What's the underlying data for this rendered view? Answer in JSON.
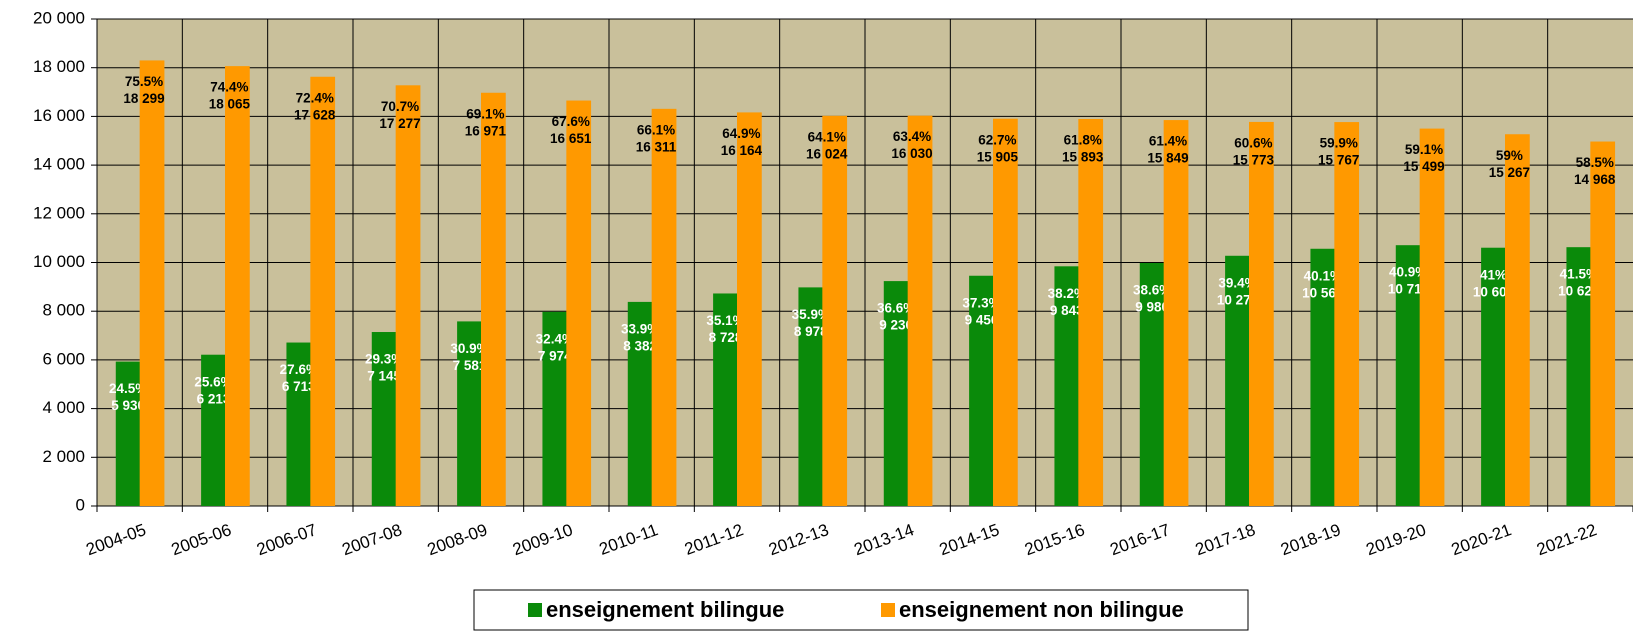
{
  "chart_data": {
    "type": "bar",
    "categories": [
      "2004-05",
      "2005-06",
      "2006-07",
      "2007-08",
      "2008-09",
      "2009-10",
      "2010-11",
      "2011-12",
      "2012-13",
      "2013-14",
      "2014-15",
      "2015-16",
      "2016-17",
      "2017-18",
      "2018-19",
      "2019-20",
      "2020-21",
      "2021-22"
    ],
    "series": [
      {
        "name": "enseignement bilingue",
        "color": "#0a8a0a",
        "values": [
          5930,
          6213,
          6713,
          7145,
          7581,
          7974,
          8382,
          8728,
          8978,
          9236,
          9456,
          9843,
          9980,
          10276,
          10564,
          10711,
          10607,
          10629
        ],
        "value_labels": [
          "5 930",
          "6 213",
          "6 713",
          "7 145",
          "7 581",
          "7 974",
          "8 382",
          "8 728",
          "8 978",
          "9 236",
          "9 456",
          "9 843",
          "9 980",
          "10 276",
          "10 564",
          "10 711",
          "10 607",
          "10 629"
        ],
        "percent_labels": [
          "24.5%",
          "25.6%",
          "27.6%",
          "29.3%",
          "30.9%",
          "32.4%",
          "33.9%",
          "35.1%",
          "35.9%",
          "36.6%",
          "37.3%",
          "38.2%",
          "38.6%",
          "39.4%",
          "40.1%",
          "40.9%",
          "41%",
          "41.5%"
        ]
      },
      {
        "name": "enseignement non bilingue",
        "color": "#ff9900",
        "values": [
          18299,
          18065,
          17628,
          17277,
          16971,
          16651,
          16311,
          16164,
          16024,
          16030,
          15905,
          15893,
          15849,
          15773,
          15767,
          15499,
          15267,
          14968
        ],
        "value_labels": [
          "18 299",
          "18 065",
          "17 628",
          "17 277",
          "16 971",
          "16 651",
          "16 311",
          "16 164",
          "16 024",
          "16 030",
          "15 905",
          "15 893",
          "15 849",
          "15 773",
          "15 767",
          "15 499",
          "15 267",
          "14 968"
        ],
        "percent_labels": [
          "75.5%",
          "74.4%",
          "72.4%",
          "70.7%",
          "69.1%",
          "67.6%",
          "66.1%",
          "64.9%",
          "64.1%",
          "63.4%",
          "62.7%",
          "61.8%",
          "61.4%",
          "60.6%",
          "59.9%",
          "59.1%",
          "59%",
          "58.5%"
        ]
      }
    ],
    "ylim": [
      0,
      20000
    ],
    "yticks": [
      0,
      {
        "value": 2000,
        "label": "2 000"
      },
      {
        "value": 4000,
        "label": "4 000"
      },
      {
        "value": 6000,
        "label": "6 000"
      },
      {
        "value": 8000,
        "label": "8 000"
      },
      {
        "value": 10000,
        "label": "10 000"
      },
      {
        "value": 12000,
        "label": "12 000"
      },
      {
        "value": 14000,
        "label": "14 000"
      },
      {
        "value": 16000,
        "label": "16 000"
      },
      {
        "value": 18000,
        "label": "18 000"
      },
      {
        "value": 20000,
        "label": "20 000"
      }
    ],
    "grid": true,
    "background": "#c9c09b",
    "legend": "bottom"
  }
}
